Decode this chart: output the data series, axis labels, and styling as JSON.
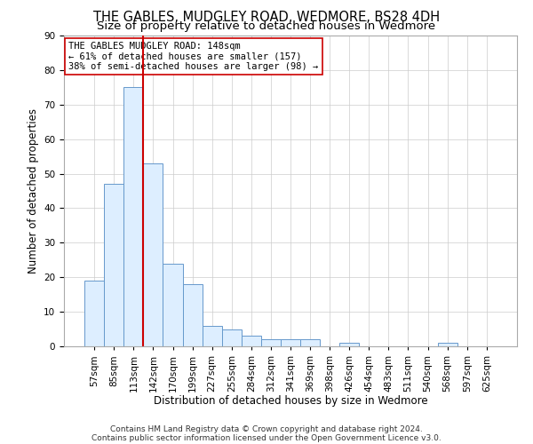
{
  "title1": "THE GABLES, MUDGLEY ROAD, WEDMORE, BS28 4DH",
  "title2": "Size of property relative to detached houses in Wedmore",
  "xlabel": "Distribution of detached houses by size in Wedmore",
  "ylabel": "Number of detached properties",
  "bar_labels": [
    "57sqm",
    "85sqm",
    "113sqm",
    "142sqm",
    "170sqm",
    "199sqm",
    "227sqm",
    "255sqm",
    "284sqm",
    "312sqm",
    "341sqm",
    "369sqm",
    "398sqm",
    "426sqm",
    "454sqm",
    "483sqm",
    "511sqm",
    "540sqm",
    "568sqm",
    "597sqm",
    "625sqm"
  ],
  "bar_heights": [
    19,
    47,
    75,
    53,
    24,
    18,
    6,
    5,
    3,
    2,
    2,
    2,
    0,
    1,
    0,
    0,
    0,
    0,
    1,
    0,
    0
  ],
  "bar_color": "#ddeeff",
  "bar_edge_color": "#6699cc",
  "vline_color": "#cc0000",
  "annotation_text": "THE GABLES MUDGLEY ROAD: 148sqm\n← 61% of detached houses are smaller (157)\n38% of semi-detached houses are larger (98) →",
  "annotation_box_color": "#ffffff",
  "annotation_box_edge": "#cc0000",
  "ylim": [
    0,
    90
  ],
  "yticks": [
    0,
    10,
    20,
    30,
    40,
    50,
    60,
    70,
    80,
    90
  ],
  "footnote1": "Contains HM Land Registry data © Crown copyright and database right 2024.",
  "footnote2": "Contains public sector information licensed under the Open Government Licence v3.0.",
  "title1_fontsize": 10.5,
  "title2_fontsize": 9.5,
  "label_fontsize": 8.5,
  "tick_fontsize": 7.5,
  "annot_fontsize": 7.5,
  "footnote_fontsize": 6.5
}
